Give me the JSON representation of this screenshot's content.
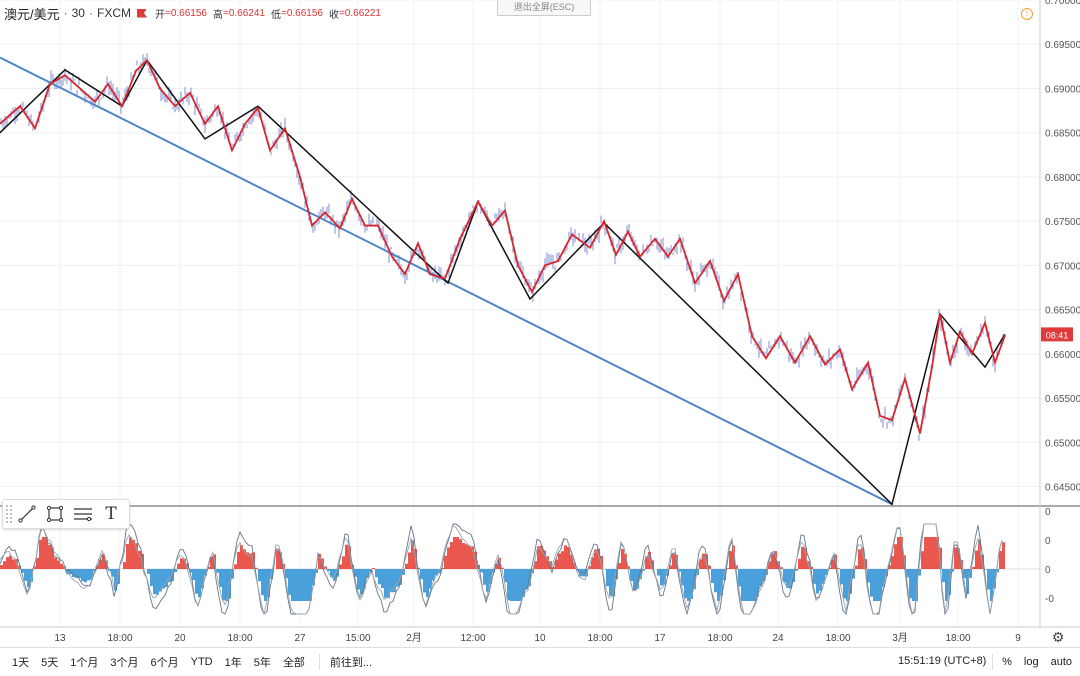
{
  "header": {
    "symbol": "澳元/美元",
    "interval": "30",
    "exchange": "FXCM",
    "open_label": "开",
    "open": "=0.66156",
    "high_label": "高",
    "high": "=0.66241",
    "low_label": "低",
    "low": "=0.66156",
    "close_label": "收",
    "close": "=0.66221",
    "flag_icon": "flag-icon"
  },
  "exit_fullscreen": "退出全屏(ESC)",
  "price_badge": "08:41",
  "colors": {
    "zigzag_red": "#d7262e",
    "zigzag_black": "#111111",
    "trendline_blue": "#4f86c6",
    "candle_blue": "#3b4fb8",
    "histogram_red": "#e5392f",
    "histogram_blue": "#2a8fd4",
    "osc_line": "#667788",
    "badge": "#e03b3b"
  },
  "chart_data": {
    "type": "line",
    "price_axis": {
      "ylim": [
        0.6428,
        0.7
      ],
      "ticks": [
        "0.70000",
        "0.69500",
        "0.69000",
        "0.68500",
        "0.68000",
        "0.67500",
        "0.67000",
        "0.66500",
        "0.66000",
        "0.65500",
        "0.65000",
        "0.64500"
      ],
      "tick_values": [
        0.7,
        0.695,
        0.69,
        0.685,
        0.68,
        0.675,
        0.67,
        0.665,
        0.66,
        0.655,
        0.65,
        0.645
      ]
    },
    "time_axis": {
      "ticks": [
        "13",
        "18:00",
        "20",
        "18:00",
        "27",
        "15:00",
        "2月",
        "12:00",
        "10",
        "18:00",
        "17",
        "18:00",
        "24",
        "18:00",
        "3月",
        "18:00",
        "9"
      ],
      "tick_index": [
        60,
        120,
        180,
        240,
        300,
        358,
        414,
        473,
        540,
        600,
        660,
        720,
        778,
        838,
        900,
        958,
        1018
      ]
    },
    "series": [
      {
        "type": "zigzag",
        "x_index": [
          0,
          20,
          35,
          50,
          65,
          80,
          95,
          108,
          122,
          136,
          147,
          160,
          175,
          190,
          205,
          218,
          232,
          245,
          258,
          270,
          285,
          300,
          312,
          325,
          340,
          352,
          365,
          378,
          392,
          405,
          418,
          430,
          445,
          460,
          478,
          492,
          505,
          518,
          532,
          545,
          558,
          572,
          590,
          604,
          616,
          628,
          640,
          655,
          668,
          680,
          695,
          710,
          724,
          738,
          752,
          766,
          780,
          795,
          810,
          825,
          840,
          852,
          868,
          880,
          892,
          905,
          920,
          932,
          940,
          950,
          960,
          972,
          985,
          995,
          1005
        ],
        "y": [
          0.686,
          0.688,
          0.6855,
          0.6905,
          0.6915,
          0.69,
          0.6885,
          0.6905,
          0.688,
          0.692,
          0.6932,
          0.69,
          0.688,
          0.6895,
          0.686,
          0.688,
          0.683,
          0.686,
          0.6878,
          0.683,
          0.6855,
          0.68,
          0.6745,
          0.676,
          0.6742,
          0.6775,
          0.6745,
          0.6745,
          0.671,
          0.669,
          0.6725,
          0.669,
          0.6685,
          0.673,
          0.6772,
          0.6745,
          0.6762,
          0.67,
          0.667,
          0.67,
          0.6705,
          0.6735,
          0.672,
          0.675,
          0.6712,
          0.6738,
          0.671,
          0.673,
          0.671,
          0.673,
          0.668,
          0.6705,
          0.666,
          0.669,
          0.662,
          0.6595,
          0.662,
          0.659,
          0.662,
          0.6588,
          0.6605,
          0.656,
          0.659,
          0.653,
          0.6525,
          0.6572,
          0.651,
          0.6585,
          0.6645,
          0.659,
          0.6625,
          0.66,
          0.6635,
          0.659,
          0.6621
        ]
      },
      {
        "type": "zigzag-major",
        "x_index": [
          0,
          65,
          122,
          147,
          205,
          258,
          448,
          478,
          530,
          604,
          892,
          940,
          985,
          1005
        ],
        "y": [
          0.685,
          0.6921,
          0.688,
          0.6932,
          0.6843,
          0.688,
          0.668,
          0.6772,
          0.6662,
          0.6748,
          0.643,
          0.6645,
          0.6585,
          0.6622
        ]
      },
      {
        "type": "trendline",
        "x_index": [
          0,
          892
        ],
        "y": [
          0.6935,
          0.643
        ]
      }
    ],
    "oscillator": {
      "ticks": [
        "0",
        "0",
        "0",
        "-0"
      ],
      "tick_pos": [
        0,
        1,
        2,
        3
      ]
    }
  },
  "drawing_tools": [
    {
      "name": "trendline-tool-icon"
    },
    {
      "name": "rectangle-tool-icon"
    },
    {
      "name": "fib-tool-icon"
    },
    {
      "name": "text-tool-icon",
      "glyph": "T"
    }
  ],
  "bottom_bar": {
    "ranges": [
      "1天",
      "5天",
      "1个月",
      "3个月",
      "6个月",
      "YTD",
      "1年",
      "5年",
      "全部"
    ],
    "goto": "前往到...",
    "clock": "15:51:19 (UTC+8)",
    "percent": "%",
    "log": "log",
    "auto": "auto"
  }
}
